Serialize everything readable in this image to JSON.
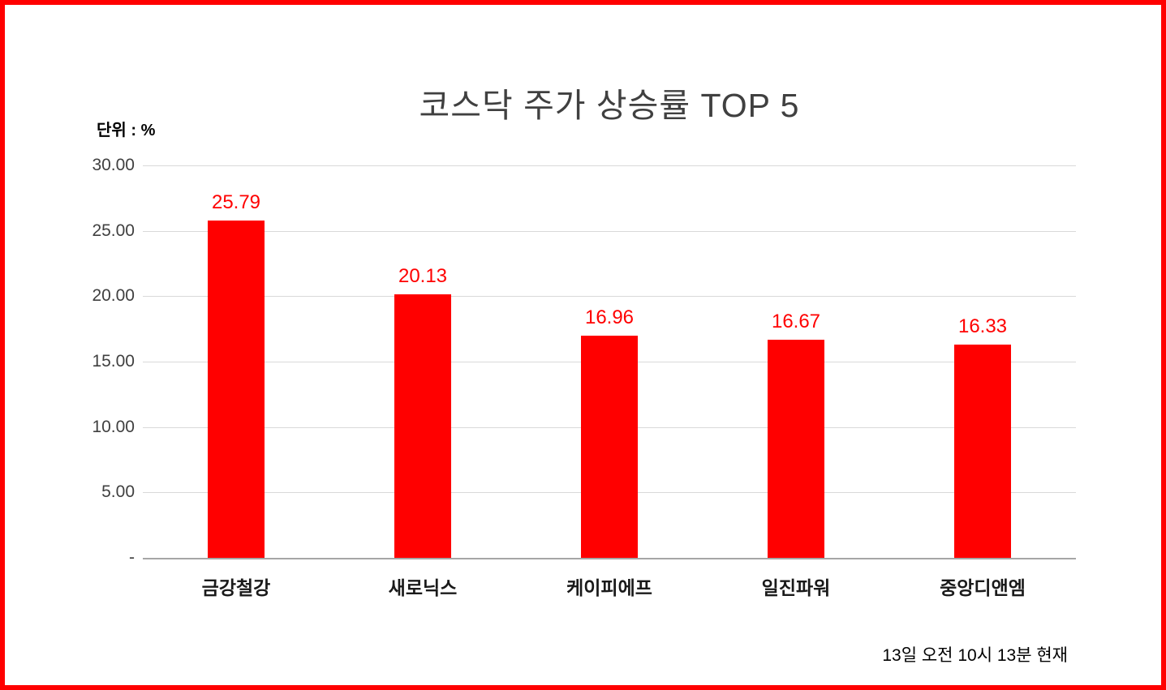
{
  "page": {
    "border_color": "#ff0000",
    "background_color": "#ffffff"
  },
  "chart_data": {
    "type": "bar",
    "title": "코스닥 주가 상승률 TOP 5",
    "unit_label": "단위 : %",
    "categories": [
      "금강철강",
      "새로닉스",
      "케이피에프",
      "일진파워",
      "중앙디앤엠"
    ],
    "values": [
      25.79,
      20.13,
      16.96,
      16.67,
      16.33
    ],
    "ylim": [
      0,
      30
    ],
    "ytick_step": 5,
    "ytick_labels": [
      "30.00",
      "25.00",
      "20.00",
      "15.00",
      "10.00",
      "5.00",
      "-"
    ],
    "grid": true,
    "legend": "none",
    "bar_color": "#ff0000",
    "value_label_color": "#ff0000",
    "footer": "13일  오전 10시 13분 현재"
  }
}
